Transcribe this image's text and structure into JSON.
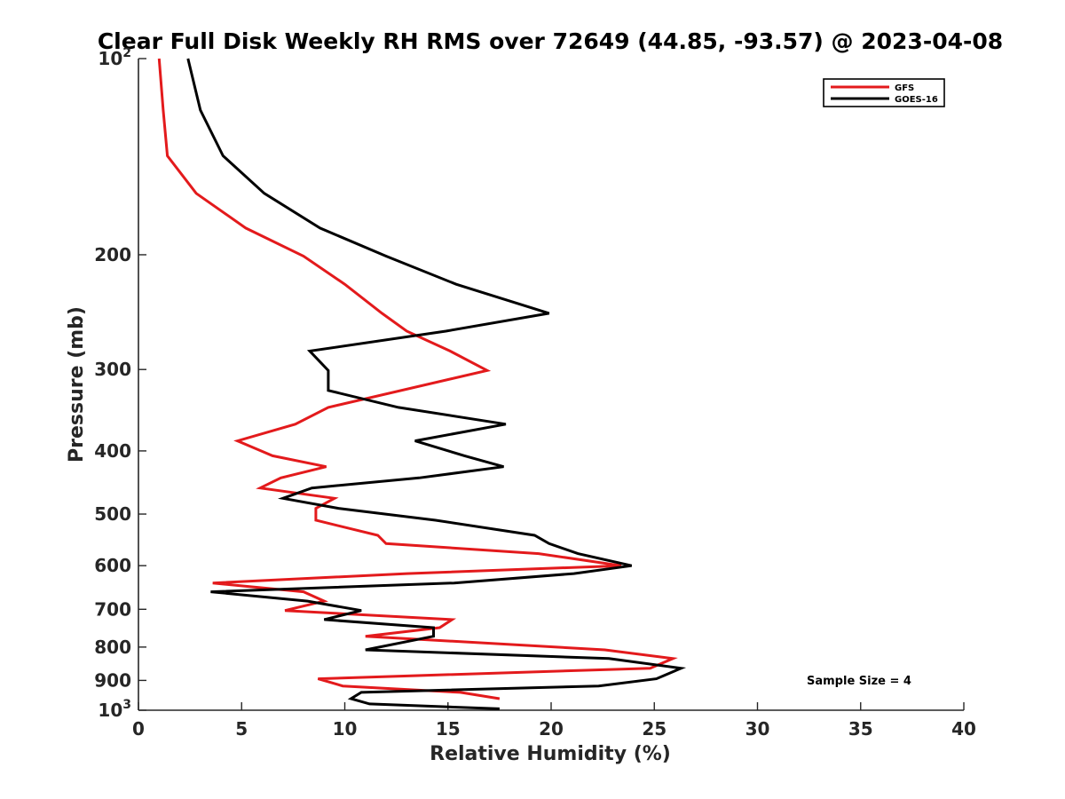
{
  "chart_data": {
    "type": "line",
    "title": "Clear Full Disk Weekly RH RMS over 72649 (44.85, -93.57) @ 2023-04-08",
    "xlabel": "Relative Humidity (%)",
    "ylabel": "Pressure (mb)",
    "xlim": [
      0,
      40
    ],
    "ylim": [
      100,
      1000
    ],
    "y_scale": "log",
    "y_reversed": true,
    "grid": false,
    "legend_position": "top-right",
    "x_ticks": [
      0,
      5,
      10,
      15,
      20,
      25,
      30,
      35,
      40
    ],
    "y_ticks": [
      100,
      200,
      300,
      400,
      500,
      600,
      700,
      800,
      900,
      1000
    ],
    "y_tick_labels": [
      {
        "base": "10",
        "exp": "2"
      },
      {
        "base": "200",
        "exp": ""
      },
      {
        "base": "300",
        "exp": ""
      },
      {
        "base": "400",
        "exp": ""
      },
      {
        "base": "500",
        "exp": ""
      },
      {
        "base": "600",
        "exp": ""
      },
      {
        "base": "700",
        "exp": ""
      },
      {
        "base": "800",
        "exp": ""
      },
      {
        "base": "900",
        "exp": ""
      },
      {
        "base": "10",
        "exp": "3"
      }
    ],
    "annotation": "Sample Size = 4",
    "series": [
      {
        "name": "GFS",
        "color": "#e31a1c",
        "points": [
          [
            1.0,
            100
          ],
          [
            1.2,
            120
          ],
          [
            1.4,
            141
          ],
          [
            2.8,
            161
          ],
          [
            5.2,
            182
          ],
          [
            8.0,
            201
          ],
          [
            10.0,
            222
          ],
          [
            11.8,
            246
          ],
          [
            13.0,
            262
          ],
          [
            15.1,
            281
          ],
          [
            16.9,
            301
          ],
          [
            9.2,
            343
          ],
          [
            7.6,
            364
          ],
          [
            4.8,
            386
          ],
          [
            6.5,
            407
          ],
          [
            9.1,
            423
          ],
          [
            6.9,
            440
          ],
          [
            5.9,
            456
          ],
          [
            9.5,
            473
          ],
          [
            8.6,
            490
          ],
          [
            8.6,
            511
          ],
          [
            11.6,
            539
          ],
          [
            12.0,
            555
          ],
          [
            19.4,
            575
          ],
          [
            23.4,
            600
          ],
          [
            13.0,
            617
          ],
          [
            3.6,
            638
          ],
          [
            8.0,
            658
          ],
          [
            9.0,
            680
          ],
          [
            7.1,
            703
          ],
          [
            15.2,
            726
          ],
          [
            14.6,
            747
          ],
          [
            11.0,
            770
          ],
          [
            22.6,
            808
          ],
          [
            25.9,
            833
          ],
          [
            24.8,
            862
          ],
          [
            8.7,
            895
          ],
          [
            9.9,
            918
          ],
          [
            15.6,
            939
          ],
          [
            17.5,
            960
          ]
        ]
      },
      {
        "name": "GOES-16",
        "color": "#000000",
        "points": [
          [
            2.4,
            100
          ],
          [
            3.0,
            120
          ],
          [
            4.1,
            141
          ],
          [
            6.1,
            161
          ],
          [
            8.8,
            182
          ],
          [
            12.0,
            201
          ],
          [
            15.4,
            222
          ],
          [
            19.9,
            246
          ],
          [
            14.9,
            262
          ],
          [
            8.3,
            281
          ],
          [
            9.2,
            301
          ],
          [
            9.2,
            323
          ],
          [
            12.6,
            343
          ],
          [
            17.8,
            364
          ],
          [
            13.4,
            386
          ],
          [
            15.8,
            407
          ],
          [
            17.7,
            423
          ],
          [
            13.6,
            440
          ],
          [
            8.4,
            456
          ],
          [
            7.0,
            473
          ],
          [
            9.7,
            490
          ],
          [
            14.4,
            511
          ],
          [
            19.2,
            539
          ],
          [
            19.9,
            555
          ],
          [
            21.3,
            575
          ],
          [
            23.9,
            600
          ],
          [
            21.1,
            617
          ],
          [
            15.3,
            638
          ],
          [
            3.5,
            658
          ],
          [
            8.2,
            680
          ],
          [
            10.8,
            703
          ],
          [
            9.0,
            726
          ],
          [
            14.3,
            747
          ],
          [
            14.3,
            770
          ],
          [
            11.0,
            808
          ],
          [
            22.8,
            833
          ],
          [
            26.3,
            862
          ],
          [
            25.1,
            895
          ],
          [
            22.3,
            918
          ],
          [
            10.8,
            939
          ],
          [
            10.3,
            960
          ],
          [
            11.2,
            978
          ],
          [
            17.5,
            995
          ]
        ]
      }
    ]
  }
}
